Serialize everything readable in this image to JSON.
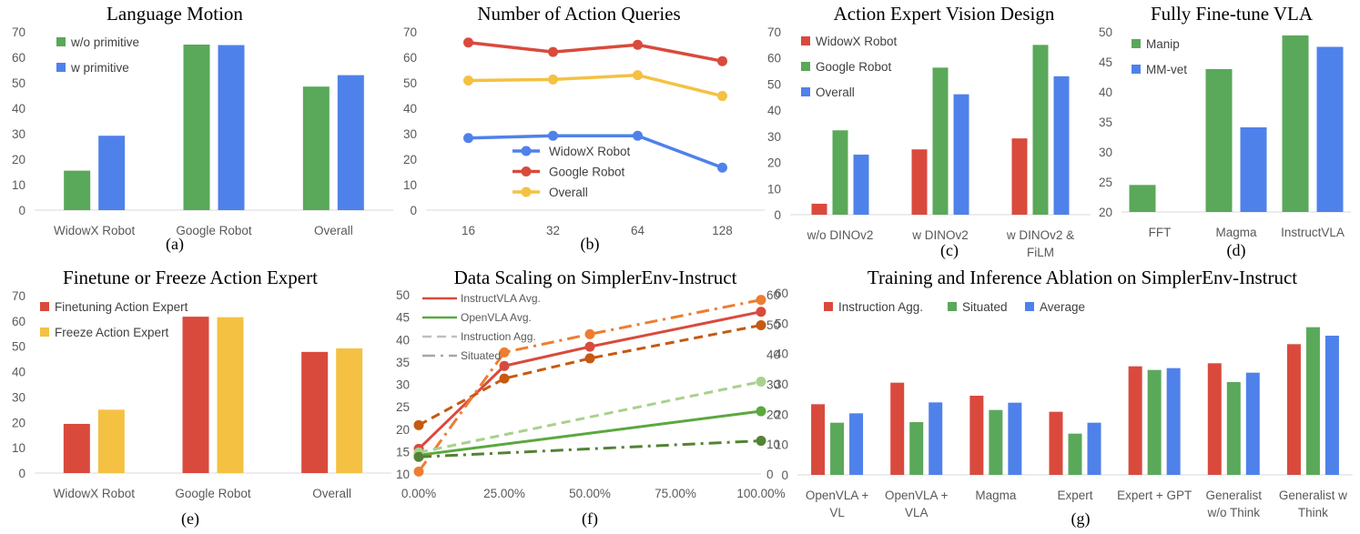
{
  "chart_data": [
    {
      "id": "a",
      "type": "bar",
      "title": "Language Motion",
      "caption": "(a)",
      "categories": [
        "WidowX Robot",
        "Google Robot",
        "Overall"
      ],
      "ylim": [
        0,
        70
      ],
      "yticks": [
        0,
        10,
        20,
        30,
        40,
        50,
        60,
        70
      ],
      "legend": "top-left",
      "series": [
        {
          "name": "w/o primitive",
          "color": "#5aa85a",
          "values": [
            15.5,
            65.0,
            48.5
          ]
        },
        {
          "name": "w primitive",
          "color": "#4f81ea",
          "values": [
            29.2,
            64.8,
            53.0
          ]
        }
      ]
    },
    {
      "id": "b",
      "type": "line",
      "title": "Number of Action Queries",
      "caption": "(b)",
      "categories": [
        "16",
        "32",
        "64",
        "128"
      ],
      "ylim": [
        0,
        70
      ],
      "yticks": [
        0,
        10,
        20,
        30,
        40,
        50,
        60,
        70
      ],
      "legend": "center-bottom",
      "series": [
        {
          "name": "WidowX Robot",
          "color": "#4f81ea",
          "values": [
            28.3,
            29.2,
            29.2,
            16.7
          ]
        },
        {
          "name": "Google Robot",
          "color": "#d94a3d",
          "values": [
            65.8,
            62.1,
            64.9,
            58.5
          ]
        },
        {
          "name": "Overall",
          "color": "#f4c142",
          "values": [
            50.9,
            51.3,
            53.0,
            44.8
          ]
        }
      ]
    },
    {
      "id": "c",
      "type": "bar",
      "title": "Action Expert Vision Design",
      "caption": "(c)",
      "categories": [
        [
          "w/o DINOv2"
        ],
        [
          "w DINOv2"
        ],
        [
          "w DINOv2 &",
          "FiLM"
        ]
      ],
      "ylim": [
        0,
        70
      ],
      "yticks": [
        0,
        10,
        20,
        30,
        40,
        50,
        60,
        70
      ],
      "legend": "top-left",
      "series": [
        {
          "name": "WidowX Robot",
          "color": "#d94a3d",
          "values": [
            4.2,
            25.0,
            29.2
          ]
        },
        {
          "name": "Google Robot",
          "color": "#5aa85a",
          "values": [
            32.3,
            56.3,
            65.0
          ]
        },
        {
          "name": "Overall",
          "color": "#4f81ea",
          "values": [
            23.0,
            46.1,
            53.0
          ]
        }
      ]
    },
    {
      "id": "d",
      "type": "bar",
      "title": "Fully Fine-tune VLA",
      "caption": "(d)",
      "categories": [
        "FFT",
        "Magma",
        "InstructVLA"
      ],
      "ylim": [
        20,
        50
      ],
      "yticks": [
        20,
        25,
        30,
        35,
        40,
        45,
        50
      ],
      "legend": "top-left",
      "series": [
        {
          "name": "Manip",
          "color": "#5aa85a",
          "values": [
            24.5,
            43.8,
            49.4
          ]
        },
        {
          "name": "MM-vet",
          "color": "#4f81ea",
          "values": [
            20.0,
            34.1,
            47.5
          ]
        }
      ]
    },
    {
      "id": "e",
      "type": "bar",
      "title": "Finetune or Freeze Action Expert",
      "caption": "(e)",
      "categories": [
        "WidowX Robot",
        "Google Robot",
        "Overall"
      ],
      "ylim": [
        0,
        70
      ],
      "yticks": [
        0,
        10,
        20,
        30,
        40,
        50,
        60,
        70
      ],
      "legend": "top-left",
      "series": [
        {
          "name": "Finetuning Action Expert",
          "color": "#d94a3d",
          "values": [
            19.4,
            61.7,
            47.8
          ]
        },
        {
          "name": "Freeze Action Expert",
          "color": "#f4c142",
          "values": [
            25.0,
            61.5,
            49.2
          ]
        }
      ]
    },
    {
      "id": "f",
      "type": "line",
      "title": "Data Scaling on SimplerEnv-Instruct",
      "caption": "(f)",
      "x": [
        0,
        25,
        50,
        100
      ],
      "xticks": [
        "0.00%",
        "25.00%",
        "50.00%",
        "75.00%",
        "100.00%"
      ],
      "ylim_left": [
        10,
        50
      ],
      "yticks_left": [
        10,
        15,
        20,
        25,
        30,
        35,
        40,
        45,
        50
      ],
      "ylim_right": [
        0,
        60
      ],
      "yticks_right": [
        0,
        10,
        20,
        30,
        40,
        50,
        60
      ],
      "legend": "top-left",
      "legend_entries": [
        {
          "name": "InstructVLA Avg.",
          "color": "#d94a3d",
          "style": "solid"
        },
        {
          "name": "OpenVLA Avg.",
          "color": "#5aa83e",
          "style": "solid"
        },
        {
          "name": "Instruction Agg.",
          "color": "#bfbfbf",
          "style": "dashed"
        },
        {
          "name": "Situated",
          "color": "#a6a6a6",
          "style": "dashdot"
        }
      ],
      "series": [
        {
          "name": "InstructVLA Avg.",
          "color": "#d94a3d",
          "style": "solid",
          "axis": "left",
          "x": [
            0,
            25,
            50,
            100
          ],
          "values": [
            15.6,
            34.1,
            38.4,
            46.2
          ]
        },
        {
          "name": "OpenVLA Avg.",
          "color": "#5aa83e",
          "style": "solid",
          "axis": "left",
          "x": [
            0,
            100
          ],
          "values": [
            14.2,
            24.0
          ]
        },
        {
          "name": "InstructVLA Instruction Agg.",
          "color": "#c55a11",
          "style": "dashed",
          "axis": "left",
          "x": [
            0,
            25,
            50,
            100
          ],
          "values": [
            20.9,
            31.3,
            35.8,
            43.2
          ]
        },
        {
          "name": "InstructVLA Situated",
          "color": "#ed7d31",
          "style": "dashdot",
          "axis": "right",
          "x": [
            0,
            25,
            50,
            100
          ],
          "values": [
            0.8,
            40.7,
            46.8,
            58.3
          ]
        },
        {
          "name": "OpenVLA Instruction Agg.",
          "color": "#a9d18e",
          "style": "dashed",
          "axis": "left",
          "x": [
            0,
            100
          ],
          "values": [
            14.8,
            30.6
          ]
        },
        {
          "name": "OpenVLA Situated",
          "color": "#548235",
          "style": "dashdot",
          "axis": "left",
          "x": [
            0,
            100
          ],
          "values": [
            13.8,
            17.4
          ]
        }
      ]
    },
    {
      "id": "g",
      "type": "bar",
      "title": "Training and Inference Ablation on SimplerEnv-Instruct",
      "caption": "(g)",
      "categories": [
        [
          "OpenVLA +",
          "VL"
        ],
        [
          "OpenVLA +",
          "VLA"
        ],
        [
          "Magma"
        ],
        [
          "Expert"
        ],
        [
          "Expert + GPT"
        ],
        [
          "Generalist",
          "w/o Think"
        ],
        [
          "Generalist w",
          "Think"
        ]
      ],
      "ylim": [
        0,
        60
      ],
      "yticks": [
        0,
        10,
        20,
        30,
        40,
        50,
        60
      ],
      "legend": "top-left-horizontal",
      "series": [
        {
          "name": "Instruction Agg.",
          "color": "#d94a3d",
          "values": [
            23.3,
            30.4,
            26.1,
            20.8,
            35.8,
            36.8,
            43.1
          ]
        },
        {
          "name": "Situated",
          "color": "#5aa85a",
          "values": [
            17.2,
            17.4,
            21.4,
            13.6,
            34.6,
            30.6,
            48.7
          ]
        },
        {
          "name": "Average",
          "color": "#4f81ea",
          "values": [
            20.3,
            23.9,
            23.8,
            17.2,
            35.2,
            33.7,
            45.9
          ]
        }
      ]
    }
  ]
}
